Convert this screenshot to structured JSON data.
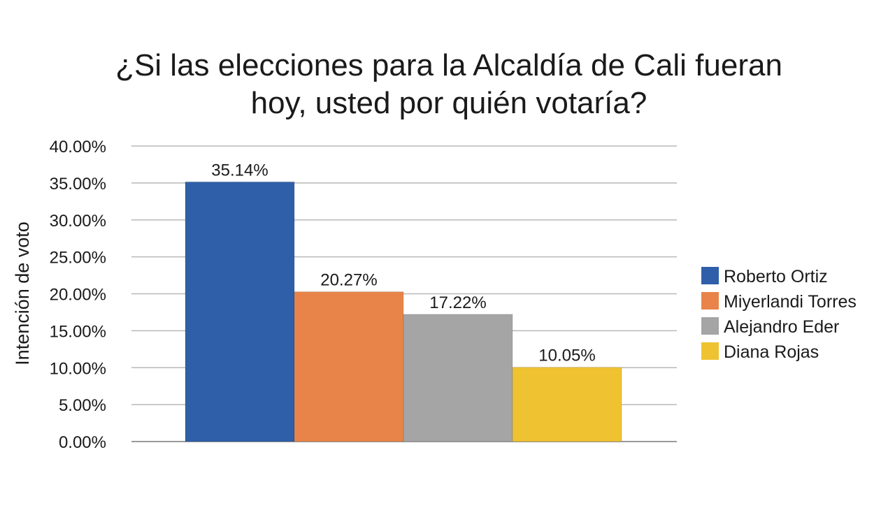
{
  "chart_data": {
    "type": "bar",
    "title_lines": [
      "¿Si las elecciones para la Alcaldía de Cali fueran",
      "hoy, usted por quién votaría?"
    ],
    "xlabel": "",
    "ylabel": "Intención de voto",
    "ylim": [
      0,
      40
    ],
    "y_ticks": [
      "0.00%",
      "5.00%",
      "10.00%",
      "15.00%",
      "20.00%",
      "25.00%",
      "30.00%",
      "35.00%",
      "40.00%"
    ],
    "y_tick_values": [
      0,
      5,
      10,
      15,
      20,
      25,
      30,
      35,
      40
    ],
    "grid": "horizontal",
    "legend_position": "right",
    "series": [
      {
        "name": "Roberto Ortiz",
        "value": 35.14,
        "label": "35.14%",
        "color": "#2f5fa8"
      },
      {
        "name": "Miyerlandi Torres",
        "value": 20.27,
        "label": "20.27%",
        "color": "#e8844a"
      },
      {
        "name": "Alejandro Eder",
        "value": 17.22,
        "label": "17.22%",
        "color": "#a5a5a5"
      },
      {
        "name": "Diana Rojas",
        "value": 10.05,
        "label": "10.05%",
        "color": "#efc232"
      }
    ]
  }
}
